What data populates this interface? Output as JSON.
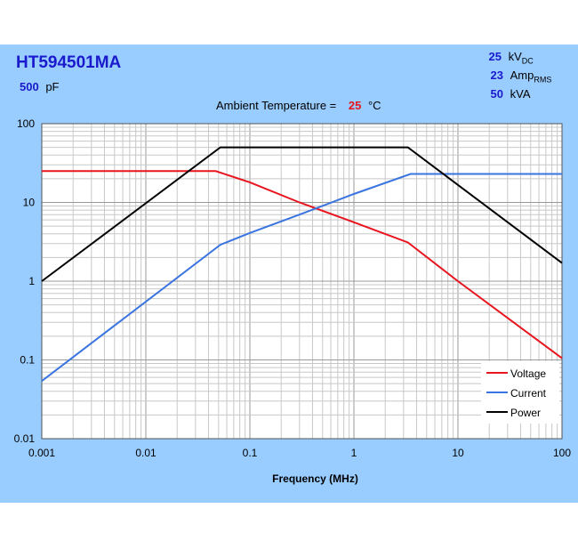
{
  "header": {
    "part_number": "HT594501MA",
    "capacitance_value": "500",
    "capacitance_unit": "pF",
    "ambient_label": "Ambient Temperature =",
    "ambient_value": "25",
    "ambient_unit": "°C",
    "ratings": [
      {
        "value": "25",
        "unit": "kV",
        "sub": "DC"
      },
      {
        "value": "23",
        "unit": "Amp",
        "sub": "RMS"
      },
      {
        "value": "50",
        "unit": "kVA",
        "sub": ""
      }
    ]
  },
  "chart_data": {
    "type": "line",
    "title": "",
    "xlabel": "Frequency (MHz)",
    "ylabel": "",
    "xscale": "log",
    "yscale": "log",
    "xlim": [
      0.001,
      100
    ],
    "ylim": [
      0.01,
      100
    ],
    "x_ticks": [
      "0.001",
      "0.01",
      "0.1",
      "1",
      "10",
      "100"
    ],
    "y_ticks": [
      "0.01",
      "0.1",
      "1",
      "10",
      "100"
    ],
    "grid": true,
    "legend_placement": "bottom-right",
    "series": [
      {
        "name": "Voltage",
        "color": "#e8141e",
        "points": [
          [
            0.001,
            25
          ],
          [
            0.047,
            25
          ],
          [
            0.1,
            18
          ],
          [
            0.3,
            10
          ],
          [
            1,
            5.6
          ],
          [
            3.3,
            3.1
          ],
          [
            10,
            1.0
          ],
          [
            100,
            0.105
          ]
        ]
      },
      {
        "name": "Current",
        "color": "#3a74e0",
        "points": [
          [
            0.001,
            0.054
          ],
          [
            0.052,
            2.9
          ],
          [
            0.1,
            4.1
          ],
          [
            0.3,
            7
          ],
          [
            1,
            12.8
          ],
          [
            3.5,
            23
          ],
          [
            100,
            23
          ]
        ]
      },
      {
        "name": "Power",
        "color": "#000000",
        "points": [
          [
            0.001,
            1
          ],
          [
            0.052,
            50
          ],
          [
            3.3,
            50
          ],
          [
            100,
            1.7
          ]
        ]
      }
    ]
  }
}
